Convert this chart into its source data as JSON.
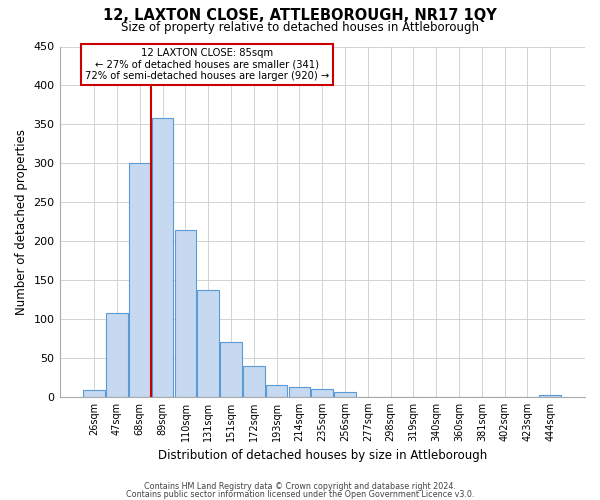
{
  "title": "12, LAXTON CLOSE, ATTLEBOROUGH, NR17 1QY",
  "subtitle": "Size of property relative to detached houses in Attleborough",
  "xlabel": "Distribution of detached houses by size in Attleborough",
  "ylabel": "Number of detached properties",
  "bar_color": "#c6d9f0",
  "bar_edge_color": "#5b9bd5",
  "categories": [
    "26sqm",
    "47sqm",
    "68sqm",
    "89sqm",
    "110sqm",
    "131sqm",
    "151sqm",
    "172sqm",
    "193sqm",
    "214sqm",
    "235sqm",
    "256sqm",
    "277sqm",
    "298sqm",
    "319sqm",
    "340sqm",
    "360sqm",
    "381sqm",
    "402sqm",
    "423sqm",
    "444sqm"
  ],
  "values": [
    9,
    108,
    300,
    358,
    214,
    137,
    70,
    39,
    15,
    13,
    10,
    6,
    0,
    0,
    0,
    0,
    0,
    0,
    0,
    0,
    2
  ],
  "ylim": [
    0,
    450
  ],
  "yticks": [
    0,
    50,
    100,
    150,
    200,
    250,
    300,
    350,
    400,
    450
  ],
  "property_line_color": "#cc0000",
  "annotation_title": "12 LAXTON CLOSE: 85sqm",
  "annotation_line1": "← 27% of detached houses are smaller (341)",
  "annotation_line2": "72% of semi-detached houses are larger (920) →",
  "footer_line1": "Contains HM Land Registry data © Crown copyright and database right 2024.",
  "footer_line2": "Contains public sector information licensed under the Open Government Licence v3.0.",
  "background_color": "#ffffff",
  "grid_color": "#cccccc"
}
